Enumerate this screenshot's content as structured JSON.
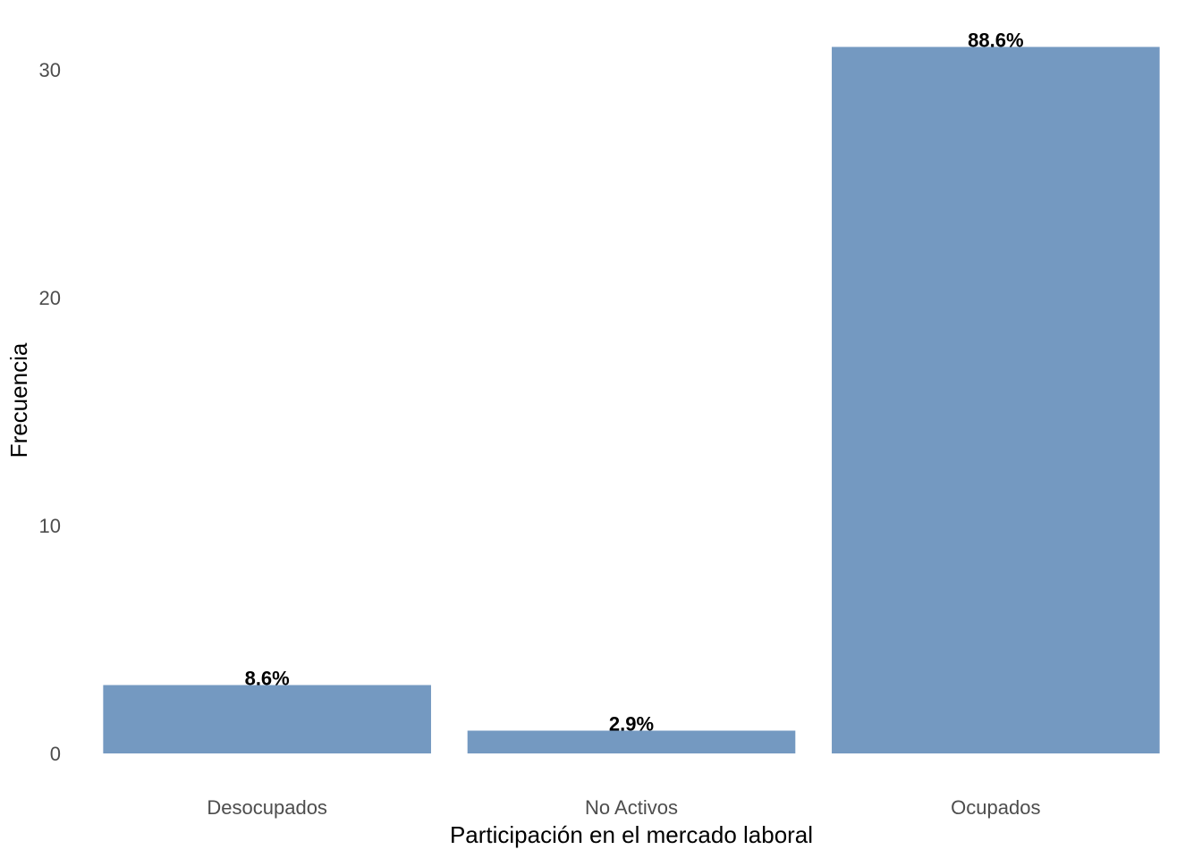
{
  "chart_data": {
    "type": "bar",
    "title": "",
    "xlabel": "Participación en el mercado laboral",
    "ylabel": "Frecuencia",
    "categories": [
      "Desocupados",
      "No Activos",
      "Ocupados"
    ],
    "values": [
      3,
      1,
      31
    ],
    "data_labels": [
      "8.6%",
      "2.9%",
      "88.6%"
    ],
    "ylim": [
      0,
      32.5
    ],
    "y_ticks": [
      0,
      10,
      20,
      30
    ],
    "grid": false,
    "legend": "none",
    "bar_color": "#7499c1"
  }
}
